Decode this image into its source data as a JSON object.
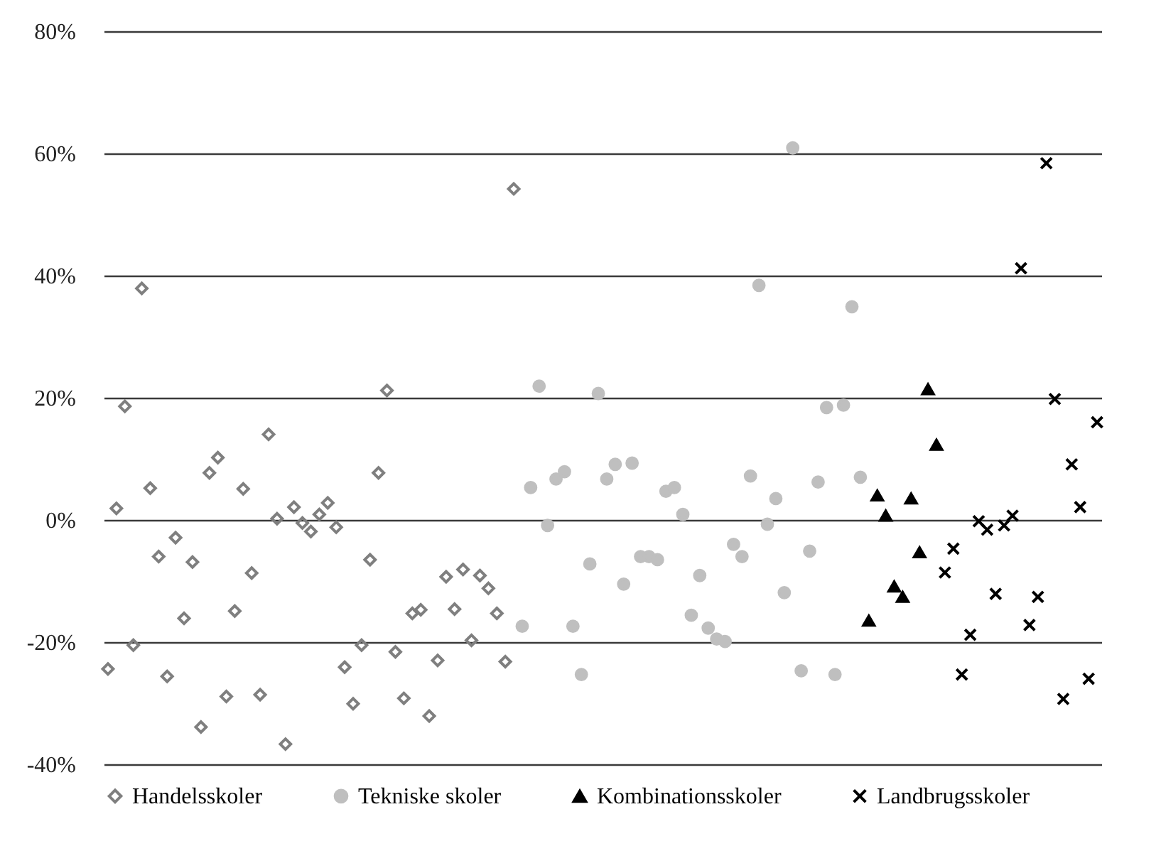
{
  "chart_data": {
    "type": "scatter",
    "categories": [
      null,
      null,
      null,
      null,
      null,
      null,
      null,
      null,
      null,
      null,
      null,
      null,
      null,
      null,
      null,
      null,
      null,
      null,
      null,
      null,
      null,
      null,
      null,
      null,
      null,
      null,
      null,
      null,
      null,
      null,
      null,
      null,
      null,
      null,
      null,
      null,
      null,
      null,
      null,
      null,
      null,
      null,
      null,
      null,
      null,
      null,
      null,
      null,
      null,
      null,
      null,
      null,
      null,
      null,
      null,
      null,
      null,
      null,
      null,
      null,
      null,
      null,
      null,
      null,
      null,
      null,
      null,
      null,
      null,
      null,
      null,
      null,
      null,
      null,
      null,
      null,
      null,
      null,
      null,
      null,
      null,
      null,
      null,
      null,
      null,
      null,
      null,
      null,
      null,
      null,
      null,
      null,
      null,
      null,
      null,
      null,
      null,
      null,
      null,
      null,
      null,
      null,
      null,
      null,
      null,
      null,
      null,
      null,
      null,
      null,
      null,
      null,
      null,
      null,
      null,
      null,
      null,
      null
    ],
    "ylim": [
      -40,
      80
    ],
    "yticks": [
      {
        "value": -40,
        "label": "-40%"
      },
      {
        "value": -20,
        "label": "-20%"
      },
      {
        "value": 0,
        "label": "0%"
      },
      {
        "value": 20,
        "label": "20%"
      },
      {
        "value": 40,
        "label": "40%"
      },
      {
        "value": 60,
        "label": "60%"
      },
      {
        "value": 80,
        "label": "80%"
      }
    ],
    "grid": "y",
    "legend": "bottom",
    "tick_labels": "y",
    "series": [
      {
        "name": "Handelsskoler",
        "color": "#7f7f7f",
        "marker": "diamond",
        "values": [
          -24.4,
          1.9,
          18.6,
          -20.5,
          37.9,
          5.2,
          -6,
          -25.6,
          -2.9,
          -16.1,
          -6.9,
          -33.9,
          7.7,
          10.2,
          -28.9,
          -14.9,
          5.1,
          -8.7,
          -28.6,
          14,
          0.2,
          -36.7,
          2.1,
          -0.5,
          -1.9,
          0.9,
          2.8,
          -1.2,
          -24.1,
          -30.1,
          -20.5,
          -6.5,
          7.7,
          21.2,
          -21.6,
          -29.2,
          -15.3,
          -14.7,
          -32.1,
          -23,
          -9.3,
          -14.6,
          -8.1,
          -19.7,
          -9.1,
          -11.2,
          -15.3,
          -23.2,
          54.2,
          null,
          null,
          null,
          null,
          null,
          null,
          null,
          null,
          null,
          null,
          null,
          null,
          null,
          null,
          null,
          null,
          null,
          null,
          null,
          null,
          null,
          null,
          null,
          null,
          null,
          null,
          null,
          null,
          null,
          null,
          null,
          null,
          null,
          null,
          null,
          null,
          null,
          null,
          null,
          null,
          null,
          null,
          null,
          null,
          null,
          null,
          null,
          null,
          null,
          null,
          null,
          null,
          null,
          null,
          null,
          null,
          null,
          null,
          null,
          null,
          null,
          null,
          null,
          null,
          null,
          null,
          null,
          null,
          null
        ]
      },
      {
        "name": "Tekniske skoler",
        "color": "#bfbfbf",
        "marker": "circle",
        "values": [
          null,
          null,
          null,
          null,
          null,
          null,
          null,
          null,
          null,
          null,
          null,
          null,
          null,
          null,
          null,
          null,
          null,
          null,
          null,
          null,
          null,
          null,
          null,
          null,
          null,
          null,
          null,
          null,
          null,
          null,
          null,
          null,
          null,
          null,
          null,
          null,
          null,
          null,
          null,
          null,
          null,
          null,
          null,
          null,
          null,
          null,
          null,
          null,
          null,
          -17.4,
          5.3,
          21.9,
          -0.9,
          6.7,
          7.9,
          -17.4,
          -25.3,
          -7.2,
          20.7,
          6.7,
          9.1,
          -10.5,
          9.3,
          -6,
          -6,
          -6.5,
          4.7,
          5.3,
          0.9,
          -15.6,
          -9.1,
          -17.7,
          -19.5,
          -19.9,
          -4,
          -6,
          7.2,
          38.4,
          -0.7,
          3.5,
          -11.9,
          60.9,
          -24.7,
          -5.1,
          6.2,
          18.4,
          -25.3,
          18.8,
          34.9,
          7,
          null,
          null,
          null,
          null,
          null,
          null,
          null,
          null,
          null,
          null,
          null,
          null,
          null,
          null,
          null,
          null,
          null,
          null,
          null,
          null,
          null,
          null,
          null,
          null,
          null,
          null,
          null,
          null
        ]
      },
      {
        "name": "Kombinationsskoler",
        "color": "#000000",
        "marker": "triangle",
        "values": [
          null,
          null,
          null,
          null,
          null,
          null,
          null,
          null,
          null,
          null,
          null,
          null,
          null,
          null,
          null,
          null,
          null,
          null,
          null,
          null,
          null,
          null,
          null,
          null,
          null,
          null,
          null,
          null,
          null,
          null,
          null,
          null,
          null,
          null,
          null,
          null,
          null,
          null,
          null,
          null,
          null,
          null,
          null,
          null,
          null,
          null,
          null,
          null,
          null,
          null,
          null,
          null,
          null,
          null,
          null,
          null,
          null,
          null,
          null,
          null,
          null,
          null,
          null,
          null,
          null,
          null,
          null,
          null,
          null,
          null,
          null,
          null,
          null,
          null,
          null,
          null,
          null,
          null,
          null,
          null,
          null,
          null,
          null,
          null,
          null,
          null,
          null,
          null,
          null,
          null,
          -16.5,
          4,
          0.7,
          -10.9,
          -12.6,
          3.5,
          -5.3,
          21.4,
          12.3,
          null,
          null,
          null,
          null,
          null,
          null,
          null,
          null,
          null,
          null,
          null,
          null,
          null,
          null,
          null,
          null,
          null,
          null,
          null
        ]
      },
      {
        "name": "Landbrugsskoler",
        "color": "#000000",
        "marker": "cross",
        "values": [
          null,
          null,
          null,
          null,
          null,
          null,
          null,
          null,
          null,
          null,
          null,
          null,
          null,
          null,
          null,
          null,
          null,
          null,
          null,
          null,
          null,
          null,
          null,
          null,
          null,
          null,
          null,
          null,
          null,
          null,
          null,
          null,
          null,
          null,
          null,
          null,
          null,
          null,
          null,
          null,
          null,
          null,
          null,
          null,
          null,
          null,
          null,
          null,
          null,
          null,
          null,
          null,
          null,
          null,
          null,
          null,
          null,
          null,
          null,
          null,
          null,
          null,
          null,
          null,
          null,
          null,
          null,
          null,
          null,
          null,
          null,
          null,
          null,
          null,
          null,
          null,
          null,
          null,
          null,
          null,
          null,
          null,
          null,
          null,
          null,
          null,
          null,
          null,
          null,
          null,
          null,
          null,
          null,
          null,
          null,
          null,
          null,
          null,
          null,
          -8.6,
          -4.7,
          -25.3,
          -18.8,
          -0.2,
          -1.6,
          -12.1,
          -0.9,
          0.7,
          41.2,
          -17.2,
          -12.6,
          58.4,
          19.8,
          -29.3,
          9.1,
          2.1,
          -26,
          16
        ]
      }
    ]
  }
}
